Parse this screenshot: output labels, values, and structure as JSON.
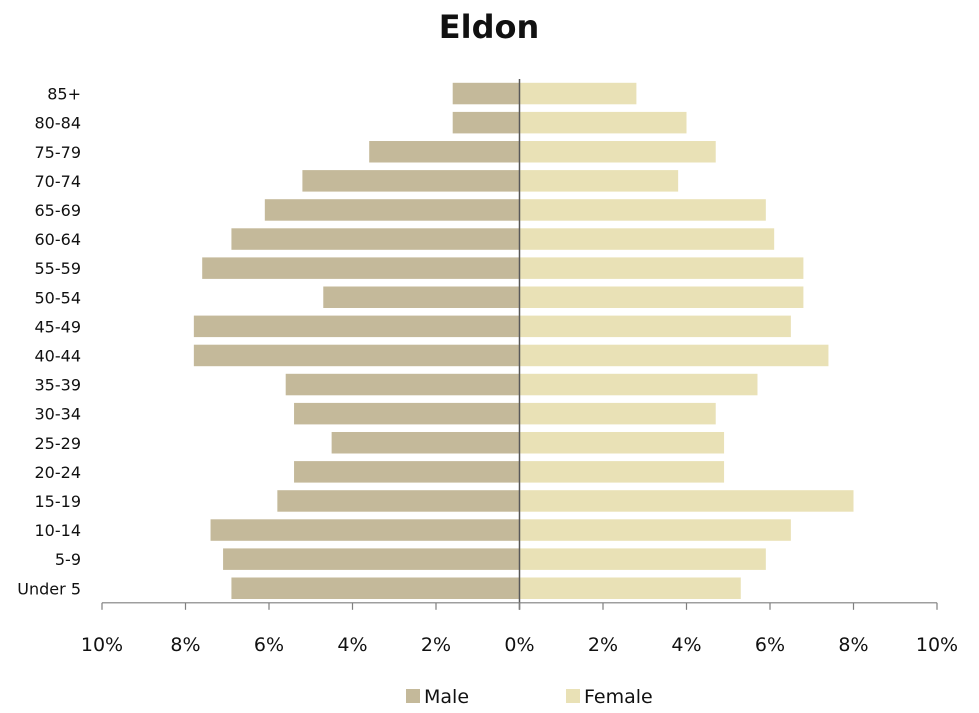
{
  "chart_data": {
    "type": "bar",
    "orientation": "horizontal",
    "title": "Eldon",
    "categories": [
      "85+",
      "80-84",
      "75-79",
      "70-74",
      "65-69",
      "60-64",
      "55-59",
      "50-54",
      "45-49",
      "40-44",
      "35-39",
      "30-34",
      "25-29",
      "20-24",
      "15-19",
      "10-14",
      "5-9",
      "Under 5"
    ],
    "series": [
      {
        "name": "Male",
        "color": "#c4b99a",
        "values": [
          1.6,
          1.6,
          3.6,
          5.2,
          6.1,
          6.9,
          7.6,
          4.7,
          7.8,
          7.8,
          5.6,
          5.4,
          4.5,
          5.4,
          5.8,
          7.4,
          7.1,
          6.9
        ]
      },
      {
        "name": "Female",
        "color": "#e9e1b6",
        "values": [
          2.8,
          4.0,
          4.7,
          3.8,
          5.9,
          6.1,
          6.8,
          6.8,
          6.5,
          7.4,
          5.7,
          4.7,
          4.9,
          4.9,
          8.0,
          6.5,
          5.9,
          5.3
        ]
      }
    ],
    "xlim": [
      -10,
      10
    ],
    "x_ticks": [
      -10,
      -8,
      -6,
      -4,
      -2,
      0,
      2,
      4,
      6,
      8,
      10
    ],
    "x_tick_labels": [
      "10%",
      "8%",
      "6%",
      "4%",
      "2%",
      "0%",
      "2%",
      "4%",
      "6%",
      "8%",
      "10%"
    ],
    "xlabel": "",
    "ylabel": "",
    "legend": "bottom",
    "grid": false
  },
  "colors": {
    "axis": "#7f7f7f",
    "center_line": "#595959"
  }
}
